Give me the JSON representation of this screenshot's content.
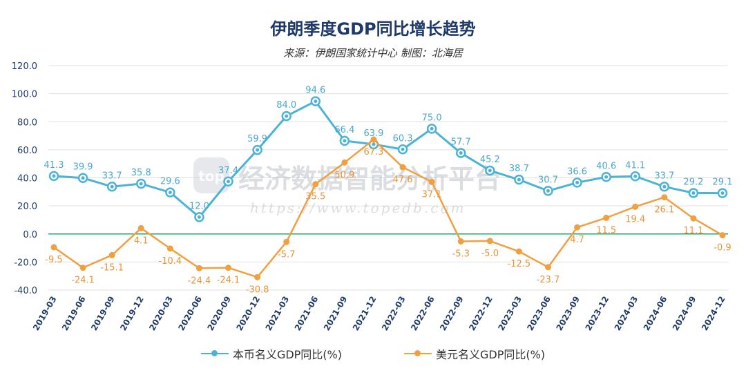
{
  "title": "伊朗季度GDP同比增长趋势",
  "subtitle": "来源：伊朗国家统计中心 制图：北海居",
  "watermark": {
    "text": "经济数据智能分析平台",
    "url": "https://www.topedb.com",
    "logo": "top"
  },
  "colors": {
    "local": "#4db3d6",
    "usd": "#f0a040",
    "zero_line": "#2e9e6b",
    "grid": "#e0e0e0",
    "axis_text": "#1f3a68"
  },
  "chart_data": {
    "type": "line",
    "title": "伊朗季度GDP同比增长趋势",
    "categories": [
      "2019-03",
      "2019-06",
      "2019-09",
      "2019-12",
      "2020-03",
      "2020-06",
      "2020-09",
      "2020-12",
      "2021-03",
      "2021-06",
      "2021-09",
      "2021-12",
      "2022-03",
      "2022-06",
      "2022-09",
      "2022-12",
      "2023-03",
      "2023-06",
      "2023-09",
      "2023-12",
      "2024-03",
      "2024-06",
      "2024-09",
      "2024-12"
    ],
    "series": [
      {
        "name": "本币名义GDP同比(%)",
        "values": [
          41.3,
          39.9,
          33.7,
          35.8,
          29.6,
          12.0,
          37.4,
          59.9,
          84.0,
          94.6,
          66.4,
          63.9,
          60.3,
          75.0,
          57.7,
          45.2,
          38.7,
          30.7,
          36.6,
          40.6,
          41.1,
          33.7,
          29.2,
          29.1
        ]
      },
      {
        "name": "美元名义GDP同比(%)",
        "values": [
          -9.5,
          -24.1,
          -15.1,
          4.1,
          -10.4,
          -24.4,
          -24.1,
          -30.8,
          -5.7,
          35.5,
          50.9,
          67.3,
          47.6,
          37.1,
          -5.3,
          -5.0,
          -12.5,
          -23.7,
          4.7,
          11.5,
          19.4,
          26.1,
          11.1,
          -0.9
        ]
      }
    ],
    "yticks": [
      "120.0",
      "100.0",
      "80.0",
      "60.0",
      "40.0",
      "20.0",
      "0.0",
      "-20.0",
      "-40.0"
    ],
    "ylim": [
      -40,
      120
    ],
    "grid": true,
    "legend": "bottom"
  }
}
